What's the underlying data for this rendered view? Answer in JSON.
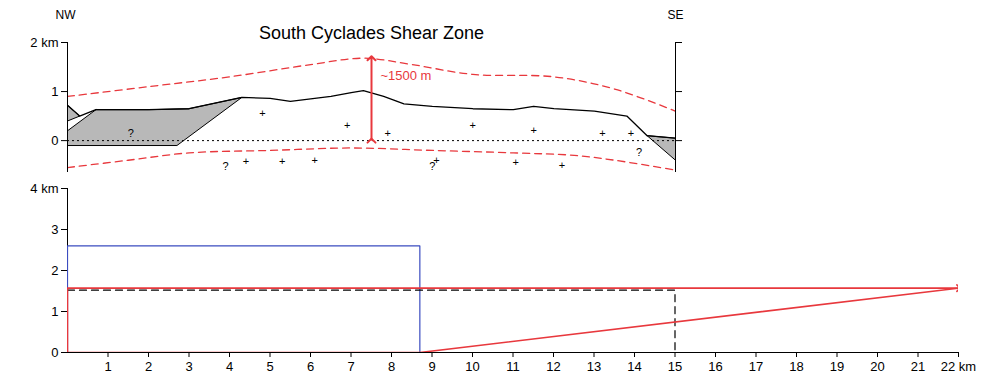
{
  "chart_data": [
    {
      "type": "cross_section",
      "title": "South Cyclades Shear Zone",
      "left_label": "NW",
      "right_label": "SE",
      "xlim": [
        0,
        15
      ],
      "ylim": [
        -0.65,
        2
      ],
      "yticks": [
        0,
        1,
        {
          "value": 2,
          "label": "2 km"
        }
      ],
      "tick_labels": "y",
      "reference_line": 0,
      "profile": {
        "color": "#000000",
        "x": [
          0,
          0.3,
          0.7,
          2,
          3,
          4.3,
          5,
          5.5,
          6,
          6.5,
          7,
          7.3,
          7.8,
          8.3,
          9,
          10,
          11,
          11.5,
          12,
          13,
          13.8,
          14.3,
          15
        ],
        "values": [
          0.72,
          0.5,
          0.63,
          0.63,
          0.65,
          0.88,
          0.86,
          0.8,
          0.85,
          0.9,
          0.98,
          1.02,
          0.9,
          0.75,
          0.7,
          0.65,
          0.63,
          0.7,
          0.65,
          0.6,
          0.5,
          0.1,
          0.05
        ]
      },
      "shaded_units": [
        {
          "color": "#b8b8b8",
          "points": [
            [
              0,
              0.72
            ],
            [
              0.3,
              0.5
            ],
            [
              0,
              0.4
            ]
          ]
        },
        {
          "color": "#b8b8b8",
          "points": [
            [
              0.7,
              0.63
            ],
            [
              2,
              0.63
            ],
            [
              3,
              0.65
            ],
            [
              4.3,
              0.88
            ],
            [
              2.7,
              -0.1
            ],
            [
              0,
              -0.1
            ],
            [
              0,
              0.2
            ]
          ]
        },
        {
          "color": "#b8b8b8",
          "points": [
            [
              14.3,
              0.1
            ],
            [
              15,
              0.05
            ],
            [
              15,
              -0.4
            ]
          ]
        }
      ],
      "envelopes": [
        {
          "color": "#e8383d",
          "line_style": "dashed",
          "x": [
            0,
            2,
            4,
            6,
            7.3,
            8.5,
            10,
            12,
            13.5,
            15
          ],
          "values": [
            0.9,
            1.1,
            1.3,
            1.55,
            1.68,
            1.55,
            1.35,
            1.3,
            1.05,
            0.6
          ]
        },
        {
          "color": "#e8383d",
          "line_style": "dashed",
          "x": [
            0,
            1.5,
            3,
            5,
            7,
            9,
            11,
            12.5,
            13.5,
            15
          ],
          "values": [
            -0.55,
            -0.4,
            -0.25,
            -0.2,
            -0.15,
            -0.2,
            -0.25,
            -0.3,
            -0.4,
            -0.6
          ]
        }
      ],
      "markers": [
        {
          "text": "+",
          "points": [
            [
              4.4,
              -0.42
            ],
            [
              4.81,
              0.55
            ],
            [
              5.3,
              -0.42
            ],
            [
              6.1,
              -0.4
            ],
            [
              6.9,
              0.3
            ],
            [
              7.9,
              0.15
            ],
            [
              9.1,
              -0.4
            ],
            [
              10,
              0.3
            ],
            [
              11.06,
              -0.45
            ],
            [
              11.5,
              0.2
            ],
            [
              12.2,
              -0.5
            ],
            [
              13.2,
              0.15
            ],
            [
              13.9,
              0.15
            ]
          ]
        },
        {
          "text": "?",
          "points": [
            [
              1.56,
              0.15
            ],
            [
              3.9,
              -0.52
            ],
            [
              9.0,
              -0.52
            ],
            [
              14.1,
              -0.25
            ]
          ]
        }
      ],
      "thickness": {
        "text": "~1500 m",
        "color": "#e8383d",
        "x": 7.5,
        "y1": 0,
        "y2": 1.68
      }
    },
    {
      "type": "line",
      "xlim": [
        0,
        22
      ],
      "ylim": [
        0,
        4
      ],
      "xticks": [
        1,
        2,
        3,
        4,
        5,
        6,
        7,
        8,
        9,
        10,
        11,
        12,
        13,
        14,
        15,
        16,
        17,
        18,
        19,
        20,
        21,
        {
          "value": 22,
          "label": "22 km"
        }
      ],
      "yticks": [
        0,
        1,
        2,
        3,
        {
          "value": 4,
          "label": "4 km"
        }
      ],
      "series": [
        {
          "color": "#3b4cc0",
          "line_style": "solid",
          "x": [
            0,
            0,
            8.7,
            8.7
          ],
          "values": [
            0,
            2.6,
            2.6,
            0
          ]
        },
        {
          "color": "#000000",
          "line_style": "dashed",
          "x": [
            0,
            15,
            15
          ],
          "values": [
            1.52,
            1.52,
            0
          ]
        },
        {
          "color": "#e8383d",
          "line_style": "solid",
          "marker": "arrow",
          "x": [
            8.7,
            0,
            0,
            22
          ],
          "values": [
            0,
            0,
            1.57,
            1.57
          ]
        },
        {
          "color": "#e8383d",
          "line_style": "solid",
          "x": [
            8.7,
            22
          ],
          "values": [
            0,
            1.57
          ]
        }
      ]
    }
  ]
}
